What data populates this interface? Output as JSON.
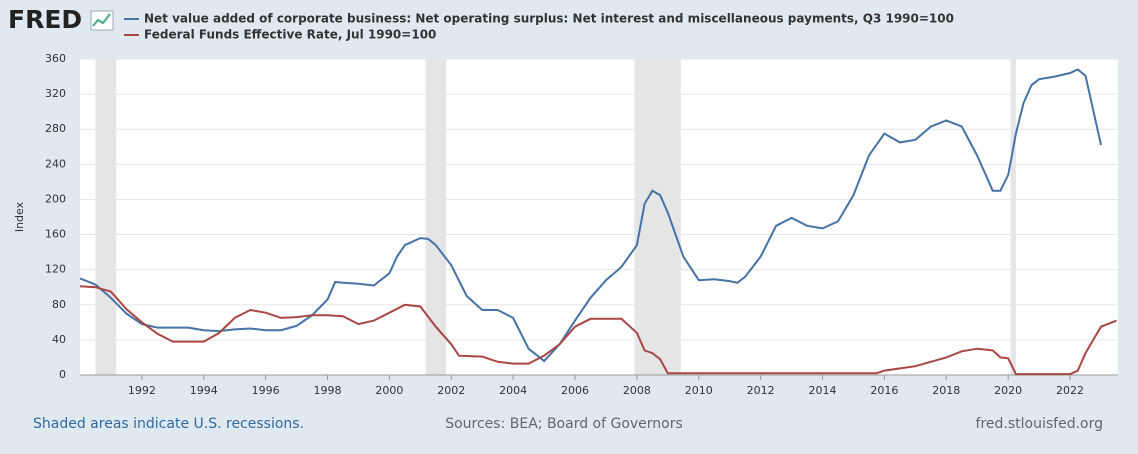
{
  "chart_data": {
    "type": "line",
    "logo": "FRED",
    "ylabel": "Index",
    "footer_left": "Shaded areas indicate U.S. recessions.",
    "footer_center": "Sources: BEA; Board of Governors",
    "footer_right": "fred.stlouisfed.org",
    "xlim": [
      1990,
      2023.55
    ],
    "xticks": [
      1992,
      1994,
      1996,
      1998,
      2000,
      2002,
      2004,
      2006,
      2008,
      2010,
      2012,
      2014,
      2016,
      2018,
      2020,
      2022
    ],
    "ylim": [
      0,
      360
    ],
    "yticks": [
      0,
      40,
      80,
      120,
      160,
      200,
      240,
      280,
      320,
      360
    ],
    "grid": true,
    "recession_color": "#e5e5e5",
    "recessions": [
      [
        1990.5,
        1991.17
      ],
      [
        2001.17,
        2001.83
      ],
      [
        2007.92,
        2009.42
      ],
      [
        2020.08,
        2020.25
      ]
    ],
    "series": [
      {
        "name": "Net value added of corporate business: Net operating surplus: Net interest and miscellaneous payments, Q3 1990=100",
        "color": "#4572a7",
        "x": [
          1990,
          1990.5,
          1991,
          1991.5,
          1992,
          1992.5,
          1993,
          1993.5,
          1994,
          1994.5,
          1995,
          1995.5,
          1996,
          1996.5,
          1997,
          1997.5,
          1998,
          1998.25,
          1998.5,
          1999,
          1999.5,
          2000,
          2000.25,
          2000.5,
          2001,
          2001.25,
          2001.5,
          2002,
          2002.5,
          2003,
          2003.5,
          2004,
          2004.5,
          2005,
          2005.5,
          2006,
          2006.5,
          2007,
          2007.5,
          2008,
          2008.25,
          2008.5,
          2008.75,
          2009,
          2009.5,
          2010,
          2010.5,
          2011,
          2011.25,
          2011.5,
          2012,
          2012.5,
          2013,
          2013.5,
          2014,
          2014.5,
          2015,
          2015.5,
          2016,
          2016.5,
          2017,
          2017.5,
          2018,
          2018.5,
          2019,
          2019.5,
          2019.75,
          2020,
          2020.25,
          2020.5,
          2020.75,
          2021,
          2021.5,
          2022,
          2022.25,
          2022.5,
          2023
        ],
        "values": [
          110,
          103,
          88,
          70,
          58,
          54,
          54,
          54,
          51,
          50,
          52,
          53,
          51,
          51,
          56,
          68,
          86,
          106,
          105,
          104,
          102,
          116,
          135,
          148,
          156,
          155,
          148,
          125,
          90,
          74,
          74,
          65,
          30,
          16,
          35,
          62,
          88,
          108,
          123,
          148,
          195,
          210,
          205,
          185,
          135,
          108,
          109,
          107,
          105,
          112,
          135,
          170,
          179,
          170,
          167,
          175,
          205,
          250,
          275,
          265,
          268,
          283,
          290,
          283,
          250,
          210,
          210,
          228,
          275,
          310,
          330,
          337,
          340,
          344,
          348,
          341,
          262
        ]
      },
      {
        "name": "Federal Funds Effective Rate, Jul 1990=100",
        "color": "#aa4643",
        "x": [
          1990,
          1990.5,
          1991,
          1991.5,
          1992,
          1992.5,
          1993,
          1993.5,
          1994,
          1994.5,
          1995,
          1995.5,
          1996,
          1996.5,
          1997,
          1997.5,
          1998,
          1998.5,
          1999,
          1999.5,
          2000,
          2000.5,
          2001,
          2001.5,
          2002,
          2002.25,
          2003,
          2003.5,
          2004,
          2004.5,
          2005,
          2005.5,
          2006,
          2006.5,
          2007,
          2007.5,
          2008,
          2008.25,
          2008.5,
          2008.75,
          2009,
          2010,
          2012,
          2015.75,
          2016,
          2017,
          2017.5,
          2018,
          2018.5,
          2019,
          2019.5,
          2019.75,
          2020,
          2020.25,
          2021,
          2022,
          2022.25,
          2022.5,
          2022.75,
          2023,
          2023.5
        ],
        "values": [
          101,
          100,
          95,
          75,
          60,
          47,
          38,
          38,
          38,
          48,
          65,
          74,
          71,
          65,
          66,
          68,
          68,
          67,
          58,
          62,
          71,
          80,
          78,
          55,
          35,
          22,
          21,
          15,
          13,
          13,
          22,
          35,
          55,
          64,
          64,
          64,
          48,
          28,
          25,
          18,
          2,
          2,
          2,
          2,
          5,
          10,
          15,
          20,
          27,
          30,
          28,
          20,
          19,
          1,
          1,
          1,
          5,
          25,
          40,
          55,
          62
        ]
      }
    ]
  }
}
